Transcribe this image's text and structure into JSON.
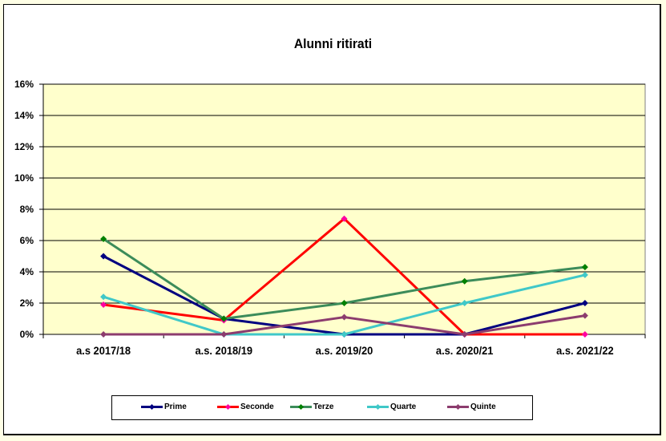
{
  "chart_data": {
    "type": "line",
    "title": "Alunni ritirati",
    "xlabel": "",
    "ylabel": "",
    "categories": [
      "a.s  2017/18",
      "a.s. 2018/19",
      "a.s. 2019/20",
      "a.s. 2020/21",
      "a.s. 2021/22"
    ],
    "yticks": [
      "0%",
      "2%",
      "4%",
      "6%",
      "8%",
      "10%",
      "12%",
      "14%",
      "16%"
    ],
    "ylim": [
      0,
      16
    ],
    "grid": true,
    "legend_position": "bottom",
    "series": [
      {
        "name": "Prime",
        "color": "#000080",
        "marker_color": "#000080",
        "values": [
          5.0,
          1.0,
          0.0,
          0.0,
          2.0
        ]
      },
      {
        "name": "Seconde",
        "color": "#FF0000",
        "marker_color": "#FF00A0",
        "values": [
          1.9,
          0.9,
          7.4,
          0.0,
          0.0
        ]
      },
      {
        "name": "Terze",
        "color": "#3C8C5A",
        "marker_color": "#008000",
        "values": [
          6.1,
          1.0,
          2.0,
          3.4,
          4.3
        ]
      },
      {
        "name": "Quarte",
        "color": "#40C8C8",
        "marker_color": "#40C8C8",
        "values": [
          2.4,
          0.0,
          0.0,
          2.0,
          3.8
        ]
      },
      {
        "name": "Quinte",
        "color": "#8C3C6E",
        "marker_color": "#8C3C6E",
        "values": [
          0.0,
          0.0,
          1.1,
          0.0,
          1.2
        ]
      }
    ],
    "plot_background": "#FFFFCC"
  }
}
